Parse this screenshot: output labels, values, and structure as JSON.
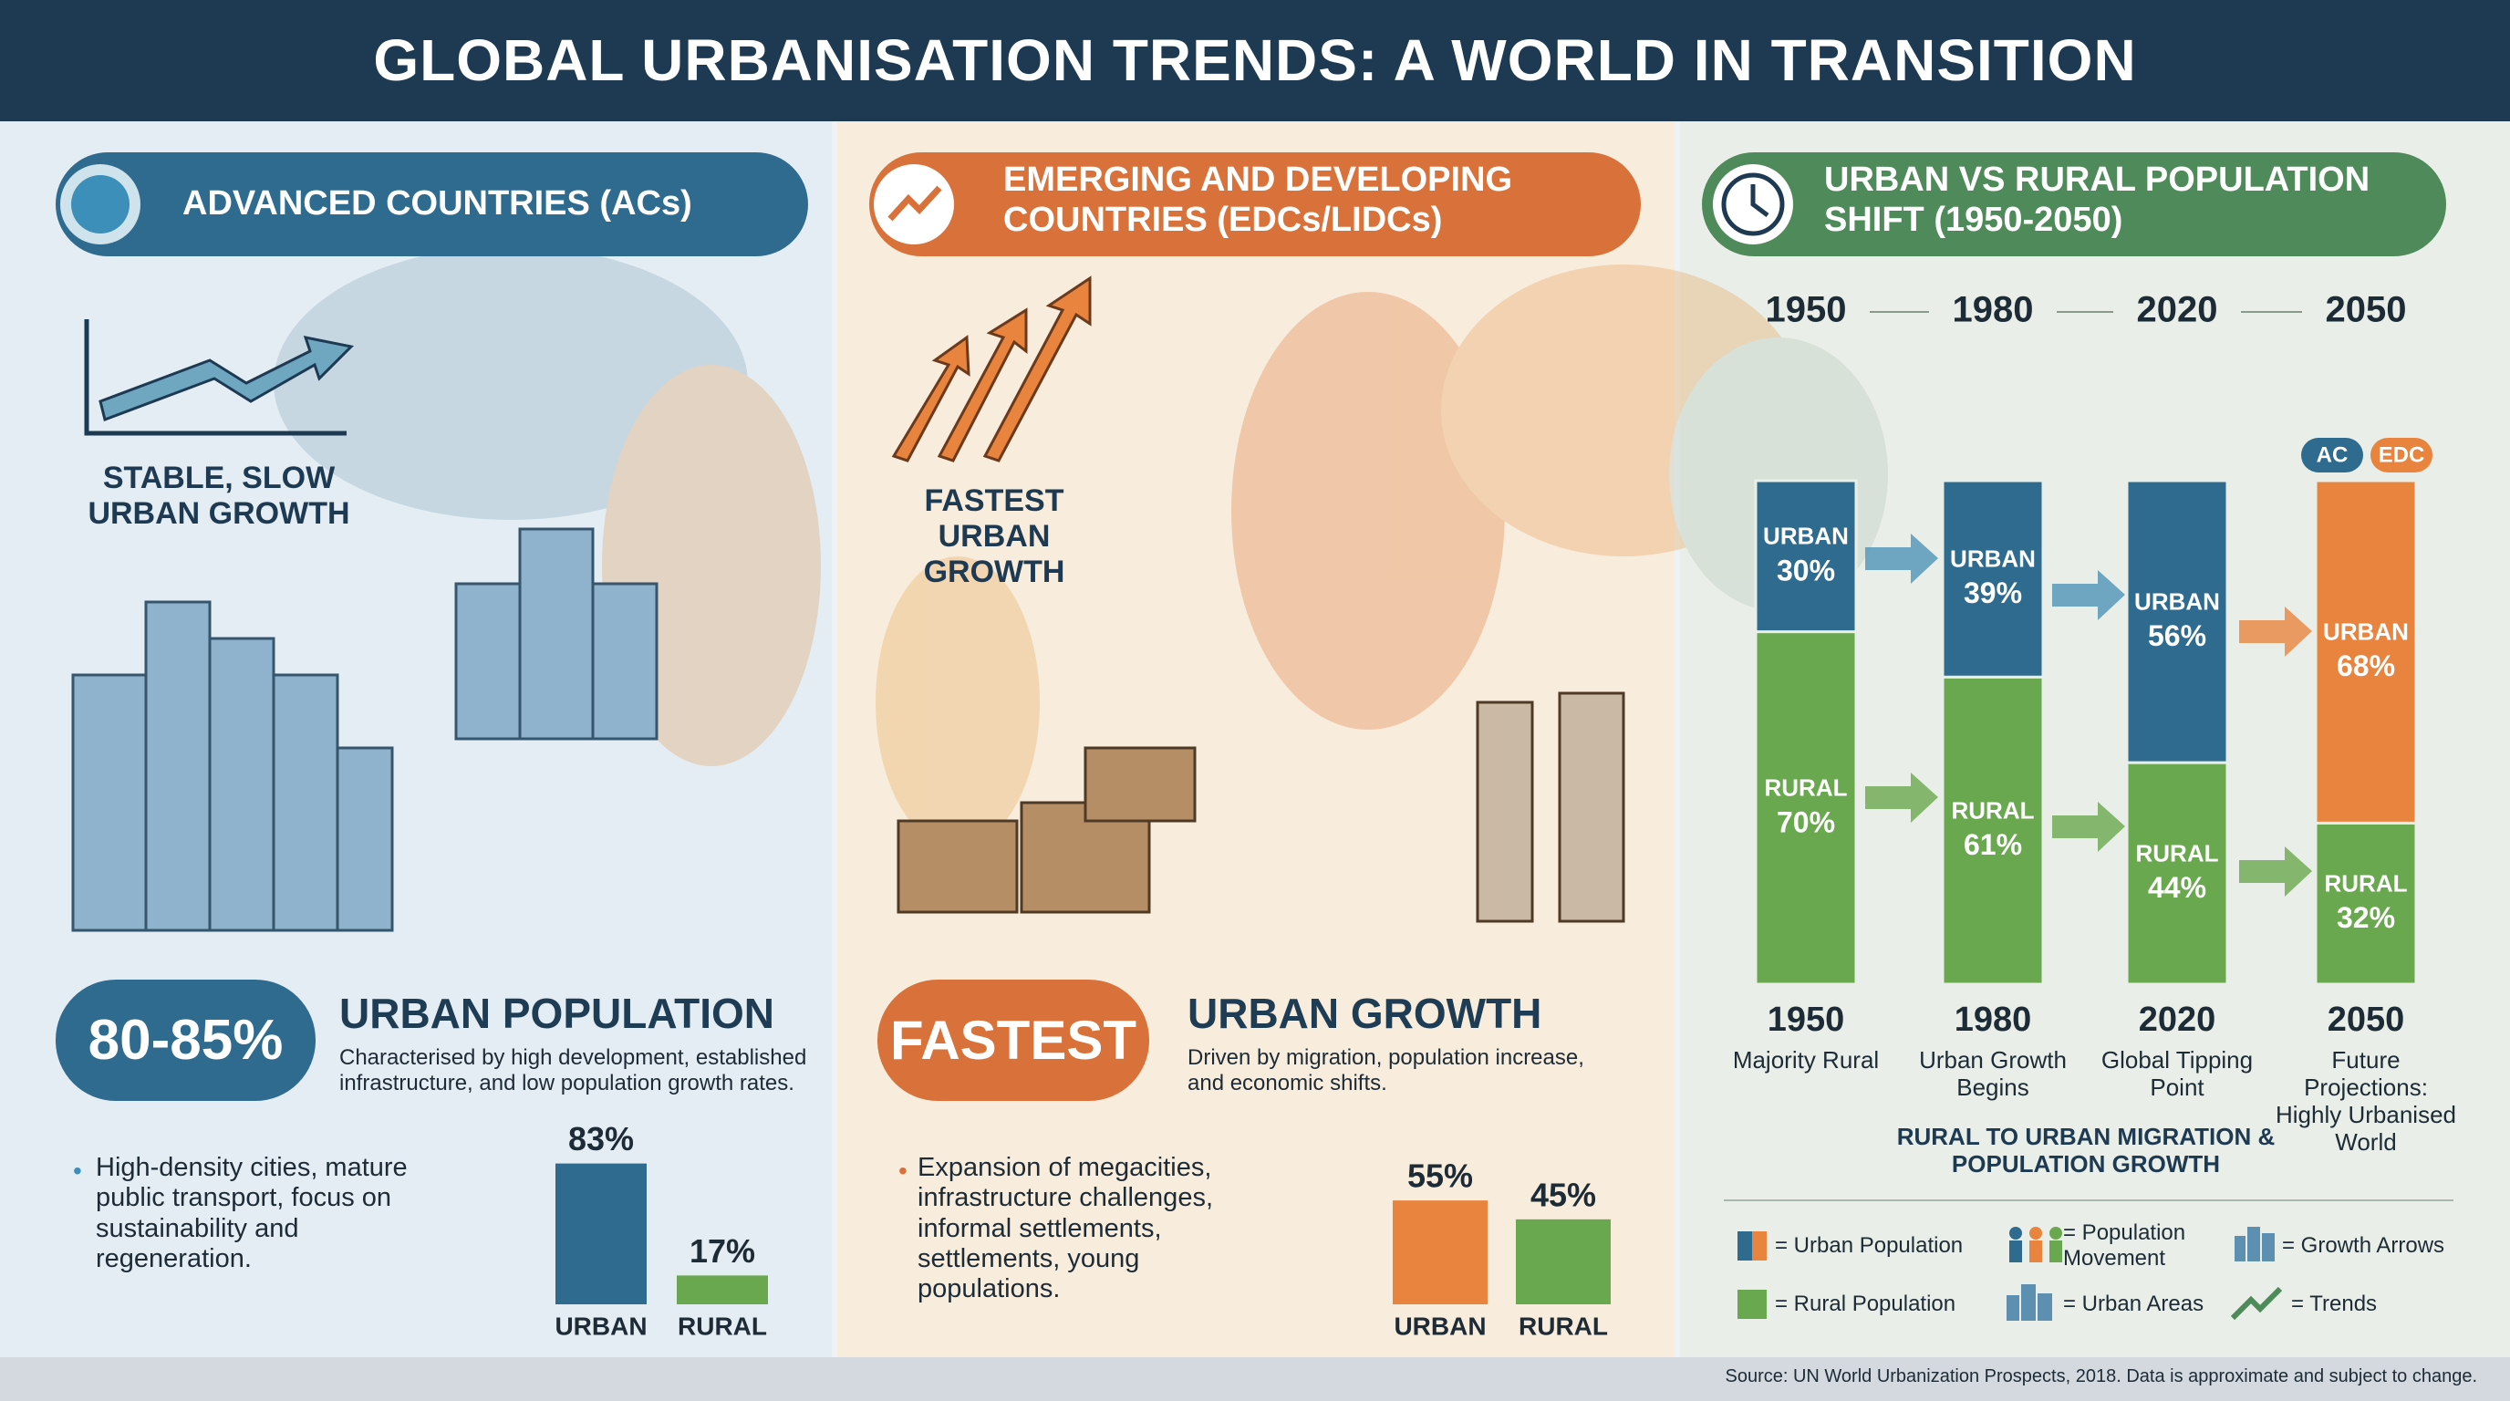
{
  "title": "GLOBAL URBANISATION TRENDS: A WORLD IN TRANSITION",
  "advanced": {
    "heading": "ADVANCED COUNTRIES (ACs)",
    "tagline": "STABLE, SLOW URBAN GROWTH",
    "stat": "80-85%",
    "stat_heading": "URBAN POPULATION",
    "description": "Characterised by high development, established infrastructure, and low population growth rates.",
    "bullet": "High-density cities, mature public transport, focus on sustainability and regeneration.",
    "chart": {
      "type": "bar",
      "categories": [
        "URBAN",
        "RURAL"
      ],
      "values": [
        83,
        17
      ],
      "value_labels": [
        "83%",
        "17%"
      ],
      "colors": [
        "#2f6b8f",
        "#6aa84f"
      ]
    }
  },
  "emerging": {
    "heading": "EMERGING AND DEVELOPING COUNTRIES (EDCs/LIDCs)",
    "tagline": "FASTEST URBAN GROWTH",
    "stat": "FASTEST",
    "stat_heading": "URBAN GROWTH",
    "description": "Driven by migration, population increase, and economic shifts.",
    "bullet": "Expansion of megacities, infrastructure challenges, informal settlements, settlements, young populations.",
    "chart": {
      "type": "bar",
      "categories": [
        "URBAN",
        "RURAL"
      ],
      "values": [
        55,
        45
      ],
      "value_labels": [
        "55%",
        "45%"
      ],
      "colors": [
        "#e8843d",
        "#6aa84f"
      ]
    }
  },
  "shift": {
    "heading": "URBAN VS RURAL POPULATION SHIFT (1950-2050)",
    "chart": {
      "type": "stacked_bar",
      "categories": [
        "1950",
        "1980",
        "2020",
        "2050"
      ],
      "series": [
        {
          "name": "URBAN",
          "colors": [
            "#2f6b8f",
            "#2f6b8f",
            "#2f6b8f",
            "#e8843d"
          ],
          "values": [
            30,
            39,
            56,
            68
          ],
          "value_labels": [
            "30%",
            "39%",
            "56%",
            "68%"
          ]
        },
        {
          "name": "RURAL",
          "color": "#6aa84f",
          "values": [
            70,
            61,
            44,
            32
          ],
          "value_labels": [
            "70%",
            "61%",
            "44%",
            "32%"
          ]
        }
      ]
    },
    "tags": [
      "AC",
      "EDC"
    ],
    "captions": [
      "Majority Rural",
      "Urban Growth Begins",
      "Global Tipping Point",
      "Future Projections: Highly Urbanised World"
    ],
    "note": "RURAL TO URBAN MIGRATION & POPULATION GROWTH",
    "legend": [
      "= Urban Population",
      "= Population Movement",
      "= Growth Arrows",
      "= Rural Population",
      "= Urban Areas",
      "= Trends"
    ]
  },
  "source": "Source: UN World Urbanization Prospects, 2018. Data is approximate and subject to change."
}
